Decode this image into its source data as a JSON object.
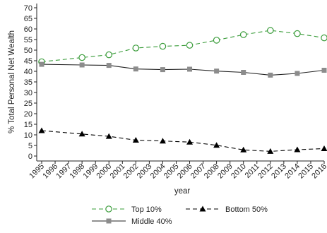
{
  "chart_data": {
    "type": "line",
    "xlabel": "year",
    "ylabel": "% Total Personal Net Wealth",
    "x_ticks": [
      "1995",
      "1996",
      "1997",
      "1998",
      "1999",
      "2000",
      "2001",
      "2002",
      "2003",
      "2004",
      "2005",
      "2006",
      "2007",
      "2008",
      "2009",
      "2010",
      "2011",
      "2012",
      "2013",
      "2014",
      "2015",
      "2016"
    ],
    "ylim": [
      0,
      70
    ],
    "y_ticks": [
      0,
      5,
      10,
      15,
      20,
      25,
      30,
      35,
      40,
      45,
      50,
      55,
      60,
      65,
      70
    ],
    "grid": false,
    "legend_position": "bottom",
    "series": [
      {
        "name": "Top 10%",
        "color": "#3a9c3a",
        "line_style": "dashed",
        "marker": "hollow-circle",
        "x": [
          1995,
          1998,
          2000,
          2002,
          2004,
          2006,
          2008,
          2010,
          2012,
          2014,
          2016
        ],
        "values": [
          44.5,
          46.5,
          47.8,
          51.0,
          51.8,
          52.3,
          54.7,
          57.3,
          59.3,
          57.8,
          55.8
        ]
      },
      {
        "name": "Middle 40%",
        "color": "#222222",
        "line_style": "solid",
        "marker": "gray-square",
        "x": [
          1995,
          1998,
          2000,
          2002,
          2004,
          2006,
          2008,
          2010,
          2012,
          2014,
          2016
        ],
        "values": [
          43.3,
          43.0,
          42.8,
          41.1,
          40.8,
          41.0,
          40.1,
          39.5,
          38.2,
          39.0,
          40.5
        ]
      },
      {
        "name": "Bottom 50%",
        "color": "#000000",
        "line_style": "dashed",
        "marker": "triangle",
        "x": [
          1995,
          1998,
          2000,
          2002,
          2004,
          2006,
          2008,
          2010,
          2012,
          2014,
          2016
        ],
        "values": [
          12.0,
          10.4,
          9.3,
          7.5,
          7.1,
          6.6,
          5.1,
          2.9,
          2.2,
          3.0,
          3.5
        ]
      }
    ]
  }
}
